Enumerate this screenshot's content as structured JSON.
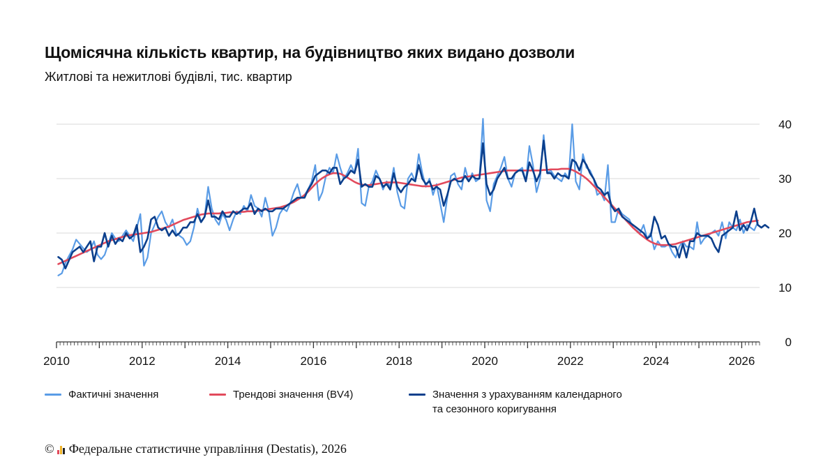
{
  "header": {
    "title": "Щомісячна кількість квартир, на будівництво яких видано дозволи",
    "subtitle": "Житлові та нежитлові будівлі, тис. квартир"
  },
  "legend": {
    "actual": "Фактичні значення",
    "trend": "Трендові значення (BV4)",
    "adjusted": "Значення з урахуванням календарного\nта сезонного коригування"
  },
  "footer": {
    "copyright_symbol": "©",
    "source": "Федеральне статистичне управління (Destatis), 2026"
  },
  "colors": {
    "actual": "#5a9ce6",
    "trend": "#e24a5c",
    "adjusted": "#0b3f8c",
    "grid": "#d9d9d9",
    "axis": "#333333"
  },
  "chart_data": {
    "type": "line",
    "x_start": "2010-01",
    "x_end": "2026-05",
    "ylim": [
      0,
      40
    ],
    "yticks": [
      0,
      10,
      20,
      30,
      40
    ],
    "xtick_labels": [
      "2010",
      "2012",
      "2014",
      "2016",
      "2018",
      "2020",
      "2022",
      "2024",
      "2026"
    ],
    "y_axis_side": "right",
    "grid": true,
    "legend_position": "bottom",
    "series": [
      {
        "name": "Фактичні значення",
        "values": [
          12.2,
          12.6,
          14.5,
          15.8,
          17.0,
          18.8,
          18.0,
          17.2,
          16.5,
          17.0,
          18.5,
          16.0,
          15.2,
          16.0,
          18.0,
          20.0,
          19.0,
          18.5,
          19.5,
          20.5,
          19.5,
          18.5,
          21.0,
          23.5,
          14.0,
          15.5,
          20.0,
          21.5,
          23.0,
          24.0,
          22.0,
          21.0,
          22.5,
          20.0,
          19.5,
          19.0,
          17.8,
          18.5,
          21.0,
          24.5,
          22.0,
          23.0,
          28.5,
          24.5,
          22.5,
          21.5,
          23.5,
          22.5,
          20.5,
          22.5,
          24.0,
          23.5,
          25.0,
          24.0,
          27.0,
          25.0,
          24.5,
          23.0,
          26.5,
          24.0,
          19.5,
          21.0,
          23.5,
          24.5,
          24.0,
          25.5,
          27.5,
          29.0,
          26.5,
          27.0,
          28.0,
          29.5,
          32.5,
          26.0,
          27.5,
          30.5,
          32.0,
          31.0,
          34.5,
          32.0,
          30.0,
          31.0,
          32.5,
          31.0,
          35.5,
          25.5,
          25.0,
          28.5,
          29.5,
          31.5,
          30.0,
          28.0,
          29.5,
          28.5,
          32.0,
          27.5,
          25.0,
          24.5,
          30.0,
          31.0,
          29.5,
          34.5,
          31.0,
          28.5,
          30.0,
          27.0,
          29.0,
          25.5,
          22.0,
          26.5,
          30.5,
          31.0,
          29.0,
          28.0,
          32.0,
          29.5,
          31.0,
          29.5,
          30.0,
          41.0,
          26.0,
          24.0,
          29.0,
          30.5,
          32.0,
          34.0,
          30.0,
          28.5,
          31.0,
          31.5,
          32.0,
          29.5,
          36.0,
          32.5,
          27.5,
          30.0,
          38.0,
          31.0,
          31.5,
          30.5,
          30.0,
          29.5,
          31.0,
          30.0,
          40.0,
          29.5,
          28.0,
          34.5,
          32.0,
          31.5,
          30.0,
          27.0,
          27.5,
          26.0,
          32.5,
          22.0,
          22.0,
          24.5,
          23.5,
          23.0,
          22.5,
          21.0,
          20.5,
          20.0,
          21.5,
          19.0,
          20.0,
          17.0,
          18.5,
          17.5,
          17.5,
          18.0,
          16.5,
          15.5,
          17.5,
          18.5,
          17.5,
          17.5,
          17.0,
          22.0,
          18.0,
          19.0,
          19.5,
          20.0,
          20.5,
          19.5,
          22.0,
          19.0,
          22.0,
          21.0,
          20.5,
          22.5,
          20.0,
          21.5,
          21.0,
          20.5,
          22.0
        ]
      },
      {
        "name": "Трендові значення (BV4)",
        "values": [
          14.3,
          14.6,
          14.9,
          15.2,
          15.5,
          15.8,
          16.1,
          16.4,
          16.7,
          17.0,
          17.3,
          17.6,
          17.9,
          18.2,
          18.5,
          18.7,
          18.9,
          19.1,
          19.3,
          19.5,
          19.6,
          19.7,
          19.8,
          19.9,
          20.0,
          20.1,
          20.2,
          20.4,
          20.6,
          20.8,
          21.0,
          21.2,
          21.5,
          21.8,
          22.1,
          22.4,
          22.6,
          22.8,
          23.0,
          23.2,
          23.4,
          23.5,
          23.6,
          23.6,
          23.6,
          23.6,
          23.7,
          23.7,
          23.8,
          23.8,
          23.8,
          23.9,
          23.9,
          24.0,
          24.0,
          24.0,
          24.1,
          24.2,
          24.3,
          24.4,
          24.5,
          24.6,
          24.7,
          24.9,
          25.1,
          25.4,
          25.7,
          26.1,
          26.5,
          27.0,
          27.6,
          28.3,
          29.0,
          29.6,
          30.1,
          30.5,
          30.8,
          31.0,
          31.0,
          30.9,
          30.6,
          30.2,
          29.8,
          29.4,
          29.1,
          28.9,
          28.8,
          28.8,
          28.9,
          29.0,
          29.1,
          29.2,
          29.3,
          29.3,
          29.3,
          29.3,
          29.2,
          29.1,
          29.0,
          28.9,
          28.8,
          28.7,
          28.6,
          28.6,
          28.6,
          28.7,
          28.8,
          29.0,
          29.2,
          29.4,
          29.6,
          29.8,
          30.0,
          30.2,
          30.3,
          30.4,
          30.5,
          30.6,
          30.7,
          30.8,
          30.9,
          31.0,
          31.1,
          31.2,
          31.3,
          31.4,
          31.5,
          31.5,
          31.5,
          31.5,
          31.5,
          31.5,
          31.5,
          31.5,
          31.5,
          31.5,
          31.6,
          31.6,
          31.7,
          31.7,
          31.7,
          31.8,
          31.8,
          31.8,
          31.6,
          31.3,
          30.9,
          30.5,
          30.0,
          29.4,
          28.7,
          28.0,
          27.3,
          26.6,
          25.9,
          25.2,
          24.5,
          23.8,
          23.1,
          22.4,
          21.7,
          21.0,
          20.4,
          19.8,
          19.3,
          18.8,
          18.4,
          18.1,
          17.9,
          17.8,
          17.8,
          17.8,
          17.9,
          18.0,
          18.2,
          18.4,
          18.6,
          18.8,
          19.0,
          19.2,
          19.4,
          19.6,
          19.8,
          20.0,
          20.2,
          20.4,
          20.6,
          20.8,
          21.0,
          21.2,
          21.4,
          21.6,
          21.8,
          22.0,
          22.1,
          22.2,
          22.3
        ]
      },
      {
        "name": "Значення з урахуванням календарного та сезонного коригування",
        "values": [
          15.6,
          15.1,
          13.5,
          15.0,
          16.5,
          17.0,
          17.5,
          16.5,
          17.5,
          18.5,
          14.8,
          17.5,
          17.5,
          20.0,
          17.5,
          19.5,
          18.0,
          19.0,
          18.5,
          20.0,
          19.0,
          19.5,
          21.5,
          16.5,
          17.5,
          19.0,
          22.5,
          23.0,
          21.0,
          20.5,
          21.0,
          19.5,
          20.5,
          19.5,
          20.0,
          21.0,
          21.0,
          22.0,
          22.0,
          23.5,
          22.0,
          23.0,
          26.0,
          23.0,
          23.0,
          22.5,
          24.0,
          23.0,
          23.0,
          24.0,
          23.5,
          24.0,
          24.5,
          24.5,
          25.5,
          23.5,
          24.5,
          24.0,
          24.5,
          24.0,
          24.0,
          24.5,
          24.5,
          24.5,
          25.0,
          25.5,
          26.0,
          26.5,
          26.5,
          26.5,
          28.0,
          29.0,
          30.5,
          31.0,
          31.5,
          31.5,
          31.0,
          32.0,
          32.0,
          29.0,
          30.0,
          30.5,
          31.5,
          31.0,
          33.5,
          28.5,
          29.0,
          28.5,
          28.5,
          30.5,
          30.0,
          28.5,
          29.0,
          28.0,
          31.0,
          28.5,
          27.5,
          28.5,
          29.0,
          30.0,
          29.5,
          32.5,
          30.0,
          29.0,
          29.5,
          28.0,
          28.5,
          28.0,
          25.0,
          27.0,
          29.5,
          30.0,
          29.5,
          29.5,
          30.5,
          29.5,
          30.5,
          30.0,
          30.0,
          36.5,
          29.0,
          27.0,
          28.0,
          30.0,
          31.0,
          32.0,
          30.0,
          30.0,
          31.0,
          31.5,
          31.5,
          29.5,
          33.0,
          31.5,
          29.5,
          31.0,
          37.0,
          31.0,
          31.0,
          30.0,
          31.0,
          30.5,
          30.5,
          30.0,
          33.5,
          33.0,
          31.5,
          33.5,
          32.5,
          31.0,
          30.0,
          28.5,
          28.0,
          27.0,
          27.5,
          25.0,
          24.0,
          24.5,
          23.0,
          22.5,
          22.0,
          21.5,
          21.0,
          20.5,
          20.0,
          19.0,
          19.5,
          23.0,
          21.5,
          19.0,
          19.5,
          18.0,
          17.5,
          17.5,
          15.5,
          18.0,
          15.5,
          18.5,
          18.5,
          20.0,
          19.5,
          19.5,
          19.5,
          19.0,
          17.5,
          16.5,
          19.5,
          20.0,
          20.5,
          21.0,
          24.0,
          20.5,
          21.5,
          20.5,
          22.0,
          24.5,
          21.5,
          21.0,
          21.5,
          21.0
        ]
      }
    ]
  }
}
